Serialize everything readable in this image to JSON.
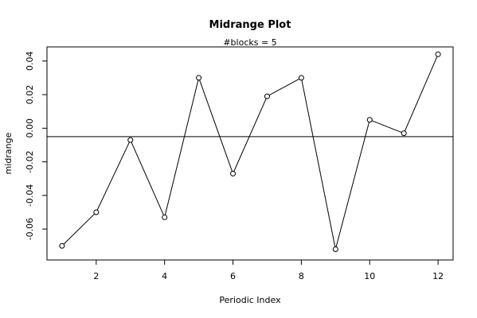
{
  "chart_data": {
    "type": "line",
    "title": "Midrange Plot",
    "subtitle": "#blocks =  5",
    "xlabel": "Periodic Index",
    "ylabel": "midrange",
    "x": [
      1,
      2,
      3,
      4,
      5,
      6,
      7,
      8,
      9,
      10,
      11,
      12
    ],
    "values": [
      -0.07,
      -0.05,
      -0.007,
      -0.053,
      0.03,
      -0.027,
      0.019,
      0.03,
      -0.072,
      0.005,
      -0.003,
      0.044
    ],
    "hline": -0.005,
    "xlim": [
      0.56,
      12.44
    ],
    "ylim": [
      -0.0784,
      0.0484
    ],
    "xticks": [
      2,
      4,
      6,
      8,
      10,
      12
    ],
    "xtick_labels": [
      "2",
      "4",
      "6",
      "8",
      "10",
      "12"
    ],
    "yticks": [
      -0.06,
      -0.04,
      -0.02,
      0.0,
      0.02,
      0.04
    ],
    "ytick_labels": [
      "-0.06",
      "-0.04",
      "-0.02",
      "0.00",
      "0.02",
      "0.04"
    ],
    "grid": false,
    "marker": "open-circle",
    "line_color": "#000000"
  }
}
